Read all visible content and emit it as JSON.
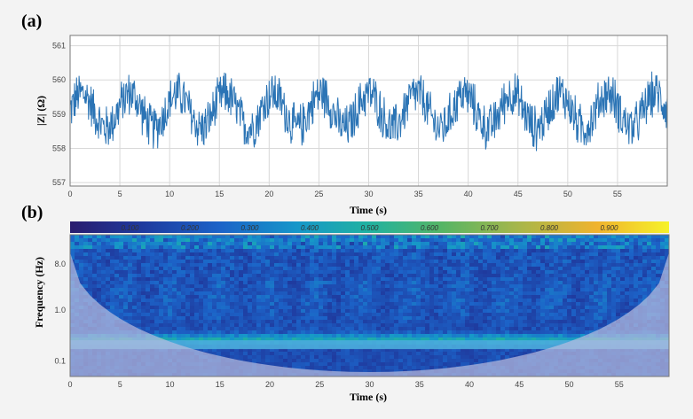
{
  "figure": {
    "panel_a_label": "(a)",
    "panel_b_label": "(b)"
  },
  "chart_data": [
    {
      "type": "line",
      "xlabel": "Time (s)",
      "ylabel": "|Z| (Ω)",
      "xlim": [
        0,
        60
      ],
      "ylim": [
        556.9,
        561.3
      ],
      "xticks": [
        "0",
        "5",
        "10",
        "15",
        "20",
        "25",
        "30",
        "35",
        "40",
        "45",
        "50",
        "55"
      ],
      "yticks": [
        "557",
        "558",
        "559",
        "560",
        "561"
      ],
      "grid": true,
      "series_color": "#2b74b5",
      "signal": {
        "sample_interval_s": 0.05,
        "mean": 559.1,
        "oscillation_period_s": 4.8,
        "oscillation_amplitude": 0.5,
        "noise_amplitude": 0.75,
        "min": 557.1,
        "max": 561.1
      }
    },
    {
      "type": "heatmap",
      "xlabel": "Time (s)",
      "ylabel": "Frequency (Hz)",
      "xlim": [
        0,
        60
      ],
      "xticks": [
        "0",
        "5",
        "10",
        "15",
        "20",
        "25",
        "30",
        "35",
        "40",
        "45",
        "50",
        "55"
      ],
      "yticks": [
        "0.1",
        "1.0",
        "8.0"
      ],
      "colorbar": {
        "ticks": [
          "0.100",
          "0.200",
          "0.300",
          "0.400",
          "0.500",
          "0.600",
          "0.700",
          "0.800",
          "0.900"
        ],
        "range": [
          0,
          1
        ],
        "colormap": "blue-cyan-yellow"
      },
      "dominant_band_hz": 0.21
    }
  ]
}
